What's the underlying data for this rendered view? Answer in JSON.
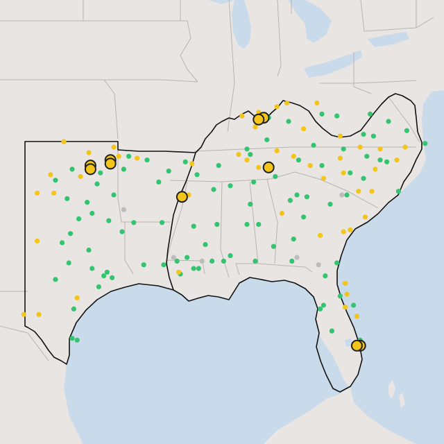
{
  "map": {
    "colors": {
      "land": "#e9e5e2",
      "water": "#c9dbea",
      "state_line": "#b9b3ad",
      "region_outline": "#111111",
      "green": "#34c46f",
      "yellow": "#f3c41a",
      "gray": "#bcbcbc",
      "large_outline": "#1f1f1f"
    },
    "markers": {
      "green": [
        [
          -97.5,
          35.4
        ],
        [
          -96.0,
          34.6
        ],
        [
          -95.8,
          35.2
        ],
        [
          -95.0,
          34.0
        ],
        [
          -98.5,
          34.8
        ],
        [
          -97.8,
          33.8
        ],
        [
          -96.6,
          33.6
        ],
        [
          -98.1,
          31.4
        ],
        [
          -97.1,
          32.7
        ],
        [
          -97.6,
          31.9
        ],
        [
          -96.3,
          33.0
        ],
        [
          -95.3,
          32.6
        ],
        [
          -94.5,
          32.0
        ],
        [
          -96.5,
          31.0
        ],
        [
          -95.4,
          29.8
        ],
        [
          -95.6,
          29.6
        ],
        [
          -95.1,
          29.5
        ],
        [
          -96.3,
          30.0
        ],
        [
          -97.7,
          30.3
        ],
        [
          -98.5,
          29.4
        ],
        [
          -97.4,
          27.8
        ],
        [
          -97.5,
          26.2
        ],
        [
          -97.2,
          26.1
        ],
        [
          -93.8,
          32.5
        ],
        [
          -92.1,
          32.5
        ],
        [
          -91.2,
          30.4
        ],
        [
          -90.2,
          30.0
        ],
        [
          -92.0,
          30.2
        ],
        [
          -93.2,
          30.2
        ],
        [
          -91.0,
          29.7
        ],
        [
          -89.9,
          30.0
        ],
        [
          -89.1,
          30.4
        ],
        [
          -88.0,
          30.7
        ],
        [
          -86.5,
          30.4
        ],
        [
          -84.3,
          30.4
        ],
        [
          -82.3,
          29.6
        ],
        [
          -82.4,
          28.0
        ],
        [
          -81.4,
          28.5
        ],
        [
          -80.6,
          28.0
        ],
        [
          -82.6,
          27.8
        ],
        [
          -81.9,
          26.6
        ],
        [
          -80.2,
          26.1
        ],
        [
          -80.3,
          25.8
        ],
        [
          -81.6,
          30.3
        ],
        [
          -83.6,
          32.8
        ],
        [
          -84.4,
          33.7
        ],
        [
          -84.0,
          34.0
        ],
        [
          -83.4,
          33.9
        ],
        [
          -82.0,
          33.5
        ],
        [
          -81.0,
          34.0
        ],
        [
          -80.0,
          34.9
        ],
        [
          -80.8,
          35.2
        ],
        [
          -79.8,
          36.1
        ],
        [
          -79.0,
          35.9
        ],
        [
          -78.6,
          35.8
        ],
        [
          -77.9,
          34.2
        ],
        [
          -76.3,
          36.8
        ],
        [
          -77.4,
          37.5
        ],
        [
          -78.5,
          38.0
        ],
        [
          -79.4,
          37.2
        ],
        [
          -80.0,
          37.3
        ],
        [
          -81.6,
          38.3
        ],
        [
          -82.5,
          38.4
        ],
        [
          -84.5,
          38.0
        ],
        [
          -85.7,
          38.2
        ],
        [
          -86.8,
          36.2
        ],
        [
          -85.3,
          35.0
        ],
        [
          -83.9,
          35.9
        ],
        [
          -82.5,
          35.6
        ],
        [
          -86.8,
          33.5
        ],
        [
          -86.6,
          34.7
        ],
        [
          -88.0,
          34.5
        ],
        [
          -89.0,
          34.3
        ],
        [
          -88.8,
          32.4
        ],
        [
          -90.2,
          32.3
        ],
        [
          -89.5,
          31.3
        ],
        [
          -87.0,
          32.4
        ],
        [
          -85.4,
          31.2
        ],
        [
          -84.2,
          31.6
        ],
        [
          -86.3,
          32.4
        ],
        [
          -90.0,
          35.1
        ],
        [
          -88.7,
          35.6
        ],
        [
          -92.3,
          34.7
        ],
        [
          -94.4,
          35.4
        ],
        [
          -93.0,
          35.9
        ],
        [
          -94.1,
          36.1
        ],
        [
          -91.7,
          35.3
        ],
        [
          -90.7,
          35.8
        ],
        [
          -87.0,
          36.5
        ],
        [
          -85.8,
          37.0
        ],
        [
          -83.0,
          36.7
        ],
        [
          -81.2,
          36.5
        ],
        [
          -79.6,
          38.4
        ],
        [
          -88.4,
          30.4
        ],
        [
          -90.6,
          30.6
        ],
        [
          -95.9,
          29.0
        ]
      ],
      "yellow": [
        [
          -96.5,
          36.3
        ],
        [
          -97.0,
          35.0
        ],
        [
          -98.8,
          35.1
        ],
        [
          -99.6,
          34.1
        ],
        [
          -99.6,
          31.5
        ],
        [
          -97.2,
          28.4
        ],
        [
          -100.4,
          27.5
        ],
        [
          -99.5,
          27.5
        ],
        [
          -95.0,
          36.6
        ],
        [
          -94.7,
          36.1
        ],
        [
          -93.6,
          36.0
        ],
        [
          -90.5,
          34.0
        ],
        [
          -90.3,
          35.7
        ],
        [
          -87.5,
          36.2
        ],
        [
          -87.0,
          35.9
        ],
        [
          -86.3,
          35.5
        ],
        [
          -85.2,
          36.4
        ],
        [
          -84.2,
          36.1
        ],
        [
          -83.2,
          35.6
        ],
        [
          -82.4,
          34.9
        ],
        [
          -81.2,
          35.2
        ],
        [
          -80.3,
          34.2
        ],
        [
          -79.9,
          32.8
        ],
        [
          -80.8,
          32.1
        ],
        [
          -81.2,
          32.0
        ],
        [
          -81.1,
          29.2
        ],
        [
          -81.0,
          28.6
        ],
        [
          -81.1,
          27.9
        ],
        [
          -80.4,
          27.4
        ],
        [
          -82.6,
          31.8
        ],
        [
          -84.9,
          33.0
        ],
        [
          -86.5,
          37.7
        ],
        [
          -87.3,
          38.3
        ],
        [
          -85.2,
          38.8
        ],
        [
          -84.6,
          39.0
        ],
        [
          -82.8,
          39.0
        ],
        [
          -83.6,
          37.6
        ],
        [
          -81.4,
          36.0
        ],
        [
          -79.3,
          35.4
        ],
        [
          -78.0,
          35.9
        ],
        [
          -77.5,
          36.6
        ],
        [
          -79.0,
          36.5
        ],
        [
          -80.2,
          36.6
        ],
        [
          -81.4,
          37.2
        ],
        [
          -79.5,
          34.2
        ],
        [
          -91.1,
          29.8
        ],
        [
          -86.3,
          38.5
        ],
        [
          -95.4,
          35.9
        ],
        [
          -98.0,
          36.9
        ],
        [
          -98.6,
          34.1
        ]
      ],
      "gray": [
        [
          -94.4,
          33.2
        ],
        [
          -91.4,
          30.6
        ],
        [
          -89.7,
          30.4
        ],
        [
          -81.3,
          34.0
        ],
        [
          -84.0,
          30.6
        ],
        [
          -82.7,
          30.2
        ]
      ],
      "large": [
        [
          -96.4,
          35.6
        ],
        [
          -96.4,
          35.4
        ],
        [
          -95.2,
          35.9
        ],
        [
          -95.2,
          35.7
        ],
        [
          -86.0,
          38.2
        ],
        [
          -86.3,
          38.1
        ],
        [
          -85.7,
          35.5
        ],
        [
          -90.9,
          33.9
        ],
        [
          -80.2,
          25.8
        ],
        [
          -80.4,
          25.8
        ]
      ]
    }
  }
}
